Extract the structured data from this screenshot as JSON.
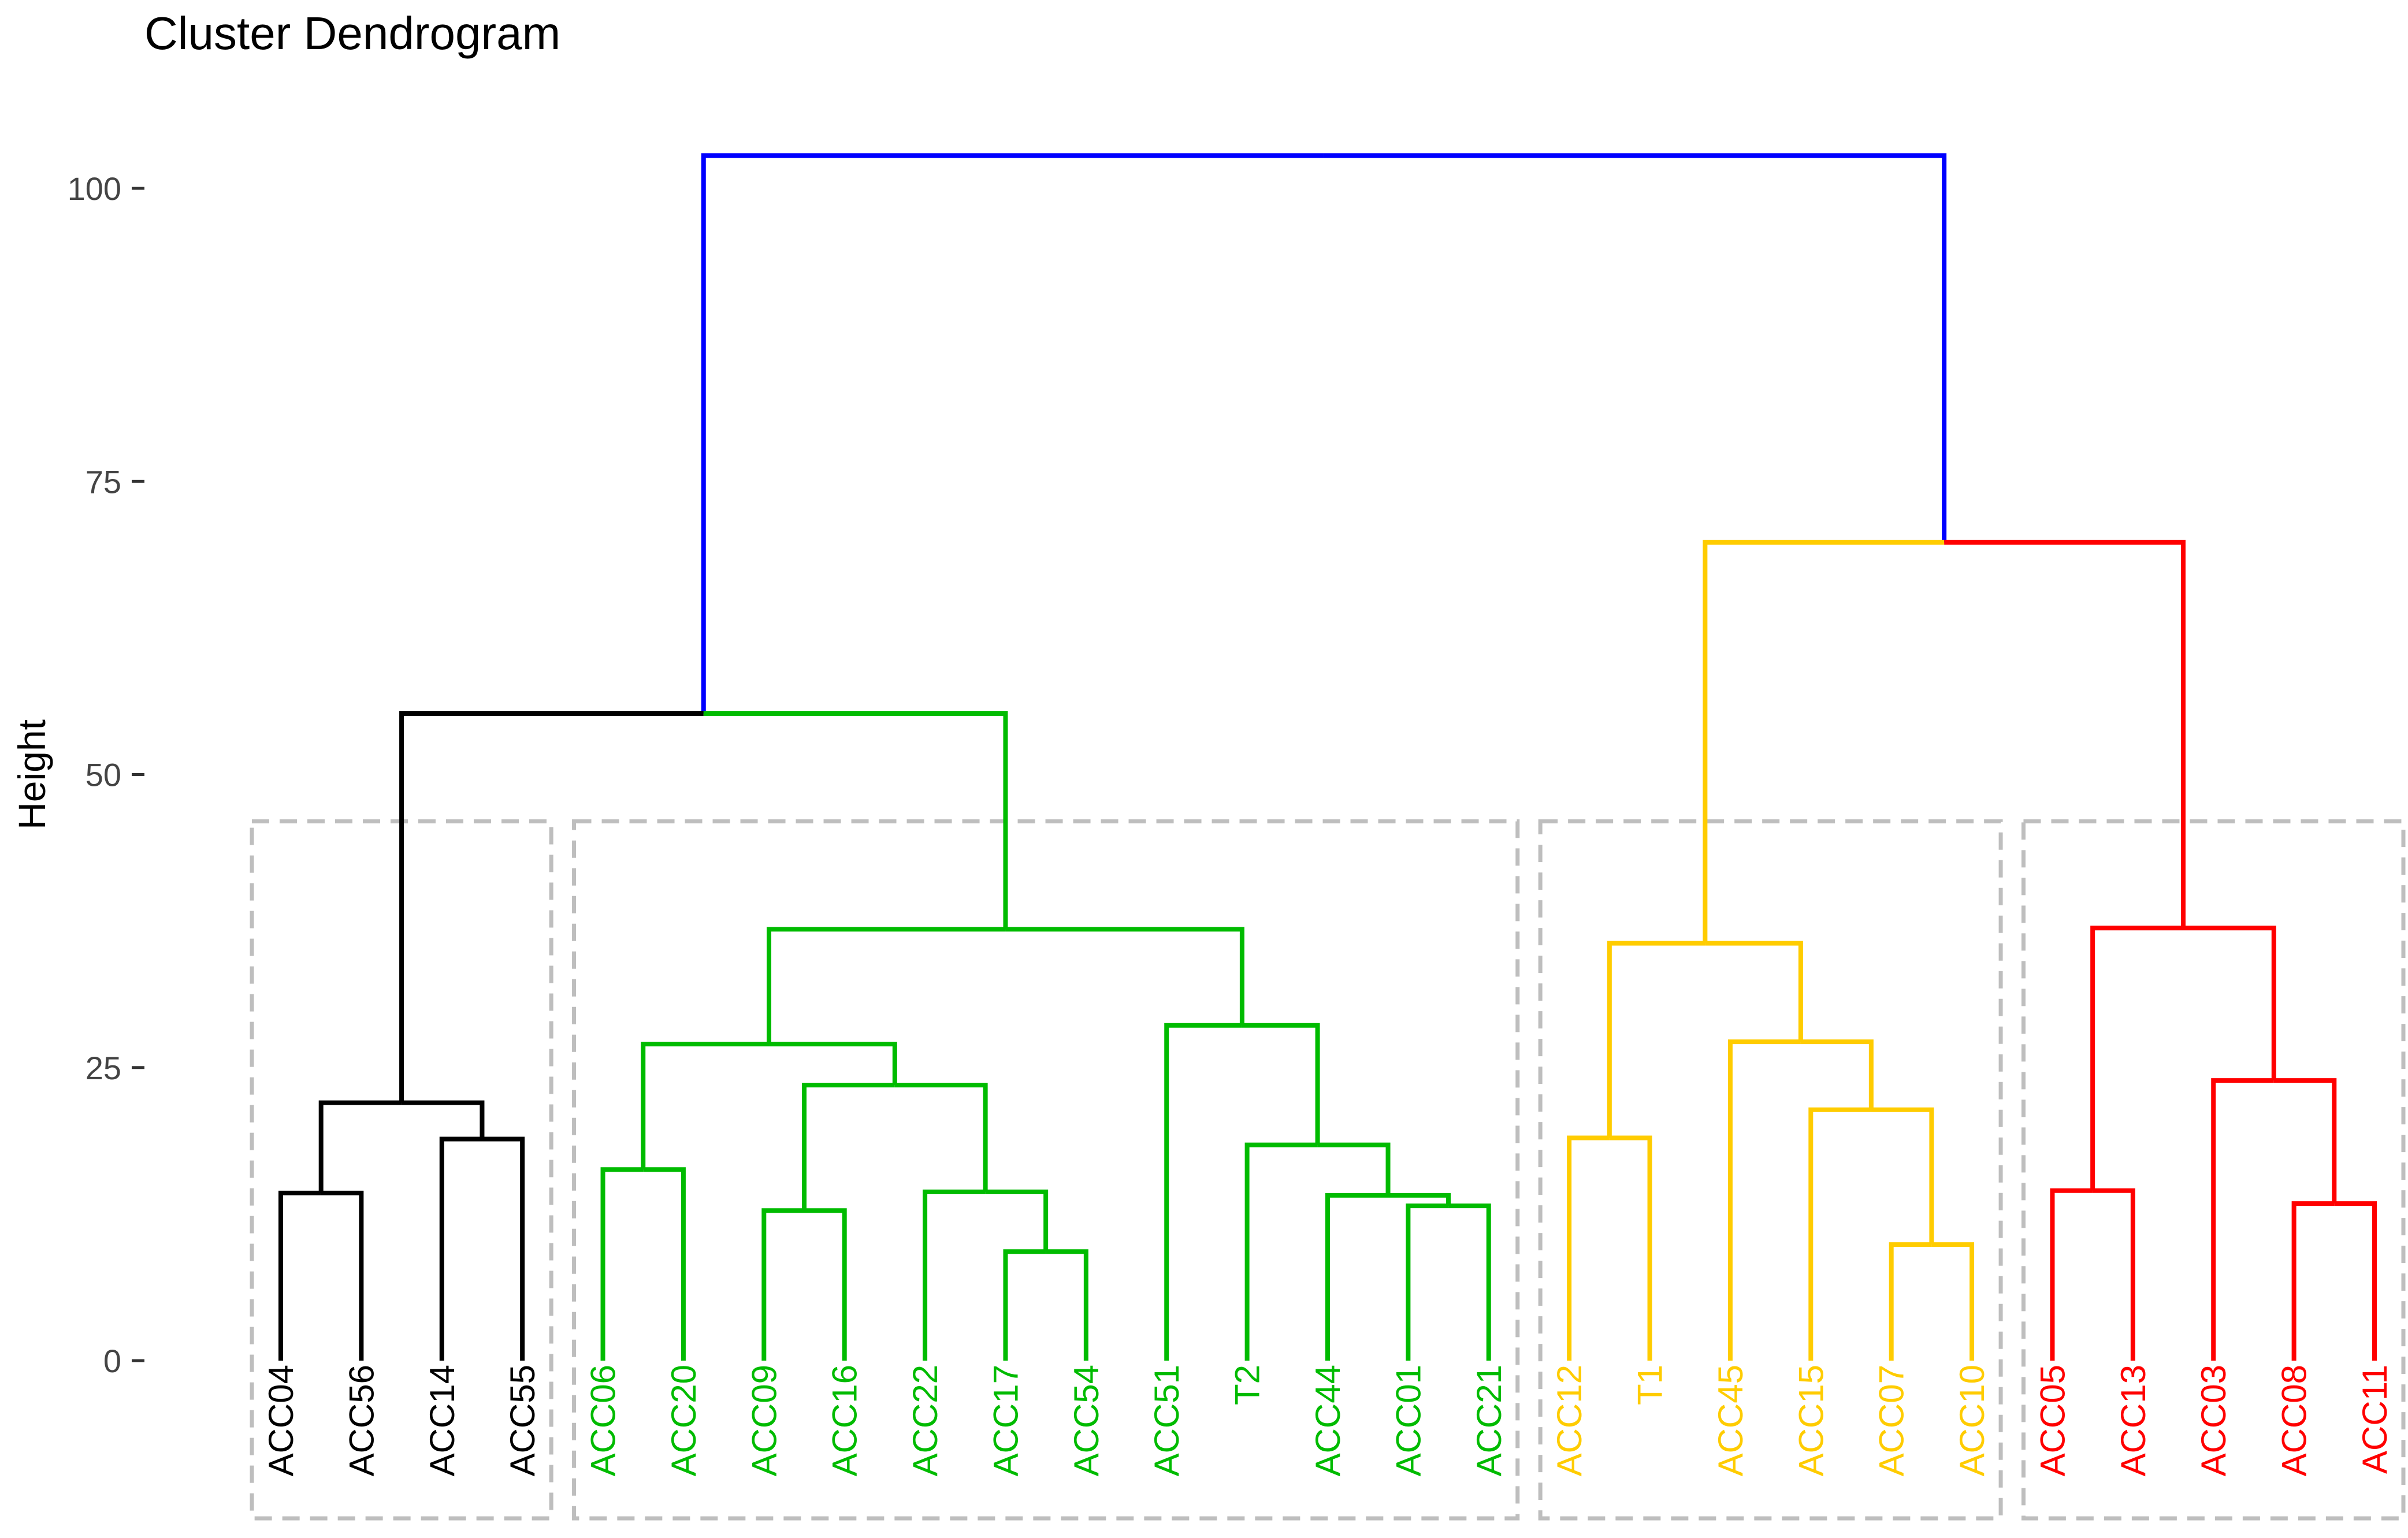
{
  "chart_data": {
    "type": "dendrogram",
    "title": "Cluster Dendrogram",
    "xlabel": "",
    "ylabel": "Height",
    "ylim": [
      -18,
      105
    ],
    "yticks": [
      0,
      25,
      50,
      75,
      100
    ],
    "cut_height": 46,
    "branch_color": "#0000ff",
    "box_color": "#bebebe",
    "clusters": [
      {
        "name": "cluster-1",
        "color": "#000000",
        "leaves": [
          "ACC04",
          "ACC56",
          "ACC14",
          "ACC55"
        ]
      },
      {
        "name": "cluster-2",
        "color": "#00bb00",
        "leaves": [
          "ACC06",
          "ACC20",
          "ACC09",
          "ACC16",
          "ACC22",
          "ACC17",
          "ACC54",
          "ACC51",
          "T2",
          "ACC44",
          "ACC01",
          "ACC21"
        ]
      },
      {
        "name": "cluster-3",
        "color": "#ffcc00",
        "leaves": [
          "ACC12",
          "T1",
          "ACC45",
          "ACC15",
          "ACC07",
          "ACC10"
        ]
      },
      {
        "name": "cluster-4",
        "color": "#ff0000",
        "leaves": [
          "ACC05",
          "ACC13",
          "ACC03",
          "ACC08",
          "ACC11"
        ]
      }
    ],
    "tree": {
      "h": 102.8,
      "c": [
        {
          "h": 55.2,
          "c": [
            {
              "h": 22.0,
              "c": [
                {
                  "h": 14.3,
                  "c": [
                    "ACC04",
                    "ACC56"
                  ]
                },
                {
                  "h": 18.9,
                  "c": [
                    "ACC14",
                    "ACC55"
                  ]
                }
              ]
            },
            {
              "h": 36.8,
              "c": [
                {
                  "h": 27.0,
                  "c": [
                    {
                      "h": 16.3,
                      "c": [
                        "ACC06",
                        "ACC20"
                      ]
                    },
                    {
                      "h": 23.5,
                      "c": [
                        {
                          "h": 12.8,
                          "c": [
                            "ACC09",
                            "ACC16"
                          ]
                        },
                        {
                          "h": 14.4,
                          "c": [
                            "ACC22",
                            {
                              "h": 9.3,
                              "c": [
                                "ACC17",
                                "ACC54"
                              ]
                            }
                          ]
                        }
                      ]
                    }
                  ]
                },
                {
                  "h": 28.6,
                  "c": [
                    "ACC51",
                    {
                      "h": 18.4,
                      "c": [
                        "T2",
                        {
                          "h": 14.1,
                          "c": [
                            "ACC44",
                            {
                              "h": 13.2,
                              "c": [
                                "ACC01",
                                "ACC21"
                              ]
                            }
                          ]
                        }
                      ]
                    }
                  ]
                }
              ]
            }
          ]
        },
        {
          "h": 69.8,
          "c": [
            {
              "h": 35.6,
              "c": [
                {
                  "h": 19.0,
                  "c": [
                    "ACC12",
                    "T1"
                  ]
                },
                {
                  "h": 27.2,
                  "c": [
                    "ACC45",
                    {
                      "h": 21.4,
                      "c": [
                        "ACC15",
                        {
                          "h": 9.9,
                          "c": [
                            "ACC07",
                            "ACC10"
                          ]
                        }
                      ]
                    }
                  ]
                }
              ]
            },
            {
              "h": 36.9,
              "c": [
                {
                  "h": 14.5,
                  "c": [
                    "ACC05",
                    "ACC13"
                  ]
                },
                {
                  "h": 23.9,
                  "c": [
                    "ACC03",
                    {
                      "h": 13.4,
                      "c": [
                        "ACC08",
                        "ACC11"
                      ]
                    }
                  ]
                }
              ]
            }
          ]
        }
      ]
    }
  }
}
